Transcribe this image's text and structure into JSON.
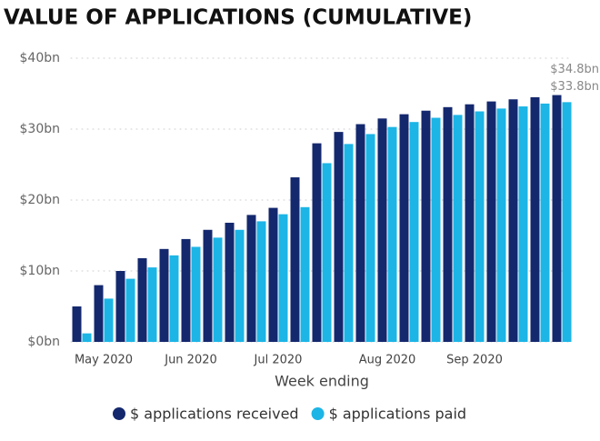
{
  "chart_data": {
    "type": "bar",
    "title": "VALUE OF APPLICATIONS (CUMULATIVE)",
    "x_label": "Week ending",
    "categories": [
      null,
      "May 2020",
      null,
      null,
      null,
      "Jun 2020",
      null,
      null,
      null,
      "Jul 2020",
      null,
      null,
      null,
      null,
      "Aug 2020",
      null,
      null,
      null,
      "Sep 2020",
      null,
      null,
      null,
      null
    ],
    "series": [
      {
        "name": "$ applications received",
        "color": "#14286e",
        "values": [
          5.0,
          8.0,
          10.0,
          11.8,
          13.1,
          14.5,
          15.8,
          16.8,
          17.9,
          18.9,
          23.2,
          28.0,
          29.6,
          30.7,
          31.5,
          32.1,
          32.6,
          33.1,
          33.5,
          33.9,
          34.2,
          34.5,
          34.8
        ],
        "value_labels": [
          null,
          null,
          null,
          null,
          null,
          null,
          null,
          null,
          null,
          null,
          null,
          null,
          null,
          null,
          null,
          null,
          null,
          null,
          null,
          null,
          null,
          null,
          "$34.8bn"
        ]
      },
      {
        "name": "$ applications paid",
        "color": "#1cb5e6",
        "values": [
          1.2,
          6.1,
          8.9,
          10.5,
          12.2,
          13.4,
          14.7,
          15.8,
          17.0,
          18.0,
          19.0,
          25.2,
          27.9,
          29.3,
          30.3,
          31.0,
          31.6,
          32.0,
          32.5,
          32.9,
          33.2,
          33.6,
          33.8
        ],
        "value_labels": [
          null,
          null,
          null,
          null,
          null,
          null,
          null,
          null,
          null,
          null,
          null,
          null,
          null,
          null,
          null,
          null,
          null,
          null,
          null,
          null,
          null,
          null,
          "$33.8bn"
        ]
      }
    ],
    "ylim": [
      0,
      40
    ],
    "yticks": [
      {
        "value": 0,
        "label": "$0bn"
      },
      {
        "value": 10,
        "label": "$10bn"
      },
      {
        "value": 20,
        "label": "$20bn"
      },
      {
        "value": 30,
        "label": "$30bn"
      },
      {
        "value": 40,
        "label": "$40bn"
      }
    ],
    "grid": true,
    "legend": "bottom"
  }
}
